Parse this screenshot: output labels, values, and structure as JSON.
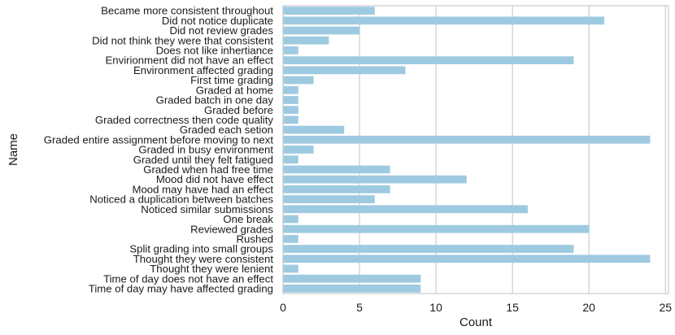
{
  "chart_data": {
    "type": "bar",
    "orientation": "horizontal",
    "xlabel": "Count",
    "ylabel": "Name",
    "xlim": [
      0,
      25.2
    ],
    "xticks": [
      0,
      5,
      10,
      15,
      20,
      25
    ],
    "grid": true,
    "bar_color": "#9ecae1",
    "categories": [
      "Became more consistent throughout",
      "Did not notice duplicate",
      "Did not review grades",
      "Did not think they were that consistent",
      "Does not like inhertiance",
      "Envirionment did not have an effect",
      "Environment affected grading",
      "First time grading",
      "Graded at home",
      "Graded batch in one day",
      "Graded before",
      "Graded correctness then code quality",
      "Graded each setion",
      "Graded entire assignment before moving to next",
      "Graded in busy environment",
      "Graded until they felt fatigued",
      "Graded when had free time",
      "Mood did not have effect",
      "Mood may have had an effect",
      "Noticed a duplication between batches",
      "Noticed similar submissions",
      "One break",
      "Reviewed grades",
      "Rushed",
      "Split grading into small groups",
      "Thought they were consistent",
      "Thought they were lenient",
      "Time of day does not have an effect",
      "Time of day may have affected grading"
    ],
    "values": [
      6,
      21,
      5,
      3,
      1,
      19,
      8,
      2,
      1,
      1,
      1,
      1,
      4,
      24,
      2,
      1,
      7,
      12,
      7,
      6,
      16,
      1,
      20,
      1,
      19,
      24,
      1,
      9,
      9
    ]
  }
}
